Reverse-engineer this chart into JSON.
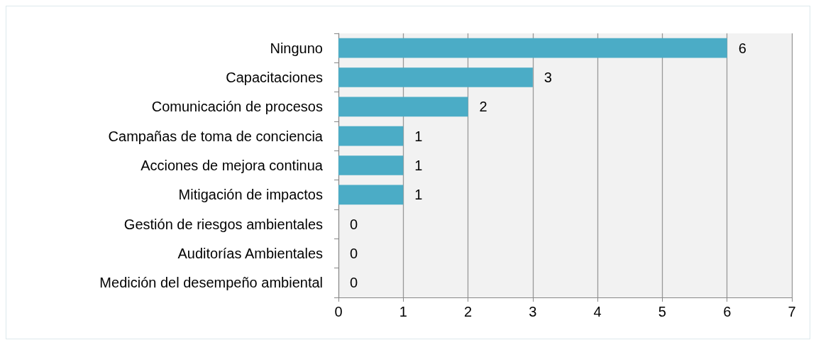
{
  "chart_data": {
    "type": "bar",
    "orientation": "horizontal",
    "categories": [
      "Ninguno",
      "Capacitaciones",
      "Comunicación de procesos",
      "Campañas de toma de conciencia",
      "Acciones de mejora continua",
      "Mitigación de impactos",
      "Gestión de riesgos ambientales",
      "Auditorías Ambientales",
      "Medición del desempeño ambiental"
    ],
    "values": [
      6,
      3,
      2,
      1,
      1,
      1,
      0,
      0,
      0
    ],
    "color": "#4bacc6",
    "xlim": [
      0,
      7
    ],
    "xticks": [
      0,
      1,
      2,
      3,
      4,
      5,
      6,
      7
    ],
    "grid": "x",
    "data_labels": true
  }
}
